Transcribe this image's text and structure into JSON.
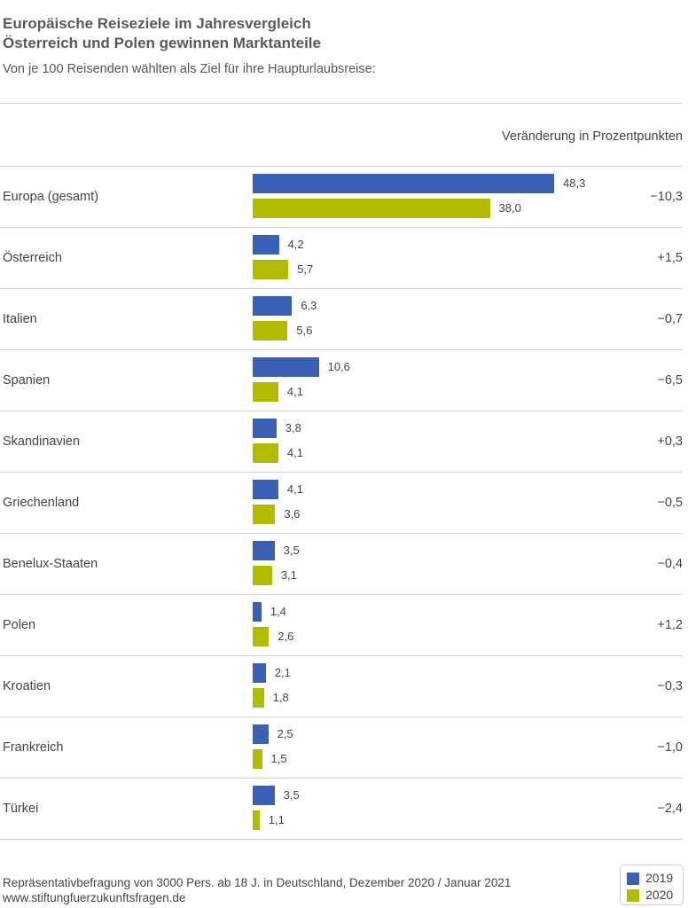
{
  "header": {
    "title_line1": "Europäische Reiseziele im Jahresvergleich",
    "title_line2": "Österreich und Polen gewinnen Marktanteile",
    "subtitle": "Von je 100 Reisenden wählten als Ziel für ihre Haupturlaubsreise:",
    "change_column_header": "Veränderung in Prozentpunkten"
  },
  "colors": {
    "series_2019": "#3a5fb5",
    "series_2020": "#b1bc00"
  },
  "chart_data": {
    "type": "bar",
    "orientation": "horizontal",
    "categories": [
      "Europa (gesamt)",
      "Österreich",
      "Italien",
      "Spanien",
      "Skandinavien",
      "Griechenland",
      "Benelux-Staaten",
      "Polen",
      "Kroatien",
      "Frankreich",
      "Türkei"
    ],
    "series": [
      {
        "name": "2019",
        "values": [
          48.3,
          4.2,
          6.3,
          10.6,
          3.8,
          4.1,
          3.5,
          1.4,
          2.1,
          2.5,
          3.5
        ],
        "labels": [
          "48,3",
          "4,2",
          "6,3",
          "10,6",
          "3,8",
          "4,1",
          "3,5",
          "1,4",
          "2,1",
          "2,5",
          "3,5"
        ]
      },
      {
        "name": "2020",
        "values": [
          38.0,
          5.7,
          5.6,
          4.1,
          4.1,
          3.6,
          3.1,
          2.6,
          1.8,
          1.5,
          1.1
        ],
        "labels": [
          "38,0",
          "5,7",
          "5,6",
          "4,1",
          "4,1",
          "3,6",
          "3,1",
          "2,6",
          "1,8",
          "1,5",
          "1,1"
        ]
      }
    ],
    "changes": [
      "−10,3",
      "+1,5",
      "−0,7",
      "−6,5",
      "+0,3",
      "−0,5",
      "−0,4",
      "+1,2",
      "−0,3",
      "−1,0",
      "−2,4"
    ],
    "legend_position": "bottom-right",
    "grid": false
  },
  "footer": {
    "note": "Repräsentativbefragung von 3000 Pers. ab 18 J. in Deutschland, Dezember 2020 / Januar 2021",
    "url": "www.stiftungfuerzukunftsfragen.de"
  }
}
